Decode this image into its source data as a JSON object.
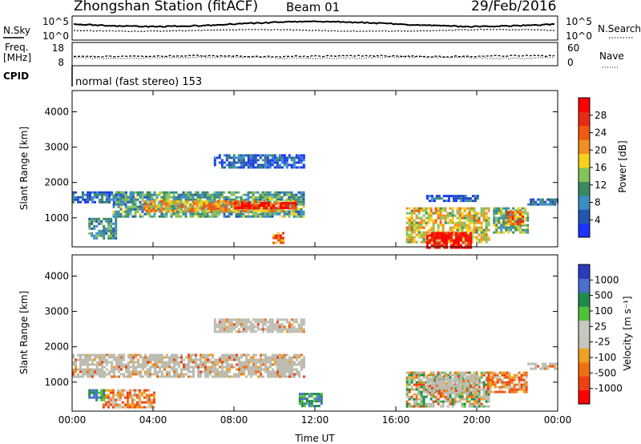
{
  "header": {
    "title": "Zhongshan Station (fitACF)",
    "beam": "Beam 01",
    "date": "29/Feb/2016"
  },
  "summary": {
    "nsky_label": "N.Sky",
    "nsky_ticks": [
      "10^5",
      "10^0"
    ],
    "nsearch_label": "N.Search",
    "nsearch_ticks": [
      "10^5",
      "10^0"
    ],
    "freq_label_line1": "Freq.",
    "freq_label_line2": "[MHz]",
    "freq_ticks": [
      "18",
      "8"
    ],
    "nave_label": "Nave",
    "nave_ticks": [
      "60",
      "0"
    ],
    "cpid_label": "CPID",
    "cpid_text": "normal (fast stereo) 153"
  },
  "colors": {
    "power_scale": [
      "#1a33ff",
      "#2255b0",
      "#3b8ec4",
      "#3a8a64",
      "#86c25b",
      "#f5d31a",
      "#f28f1e",
      "#f05a10",
      "#e82b14",
      "#ff0000"
    ],
    "velocity_scale": [
      "#2a3cbc",
      "#4a6fd0",
      "#1f8a4a",
      "#4fc23b",
      "#c8c8c0",
      "#c6c6bc",
      "#f0a020",
      "#f07010",
      "#ef4010",
      "#ff0000"
    ],
    "ground_scatter": "#bcbcb0"
  },
  "chart_data": [
    {
      "type": "heatmap",
      "title": "",
      "xlabel": "",
      "ylabel": "Slant Range [km]",
      "x_ticks": [
        "00:00",
        "04:00",
        "08:00",
        "12:00",
        "16:00",
        "20:00",
        "00:00"
      ],
      "xlim_hours": [
        0,
        24
      ],
      "ylim_km": [
        180,
        4600
      ],
      "y_ticks": [
        1000,
        2000,
        3000,
        4000
      ],
      "colorbar": {
        "label": "Power [dB]",
        "ticks": [
          "4",
          "8",
          "12",
          "16",
          "20",
          "24",
          "28"
        ],
        "range": [
          0,
          30
        ]
      },
      "regions": [
        {
          "t0": 0.0,
          "t1": 3.0,
          "r0": 1450,
          "r1": 1750,
          "level": 0.2
        },
        {
          "t0": 2.0,
          "t1": 11.5,
          "r0": 1050,
          "r1": 1750,
          "level": 0.35
        },
        {
          "t0": 3.5,
          "t1": 11.0,
          "r0": 1200,
          "r1": 1500,
          "level": 0.62
        },
        {
          "t0": 8.0,
          "t1": 11.0,
          "r0": 1250,
          "r1": 1450,
          "level": 0.85
        },
        {
          "t0": 0.8,
          "t1": 2.2,
          "r0": 400,
          "r1": 1000,
          "level": 0.3
        },
        {
          "t0": 7.0,
          "t1": 11.5,
          "r0": 2450,
          "r1": 2800,
          "level": 0.15
        },
        {
          "t0": 9.9,
          "t1": 10.4,
          "r0": 300,
          "r1": 600,
          "level": 0.7
        },
        {
          "t0": 16.5,
          "t1": 20.6,
          "r0": 300,
          "r1": 1300,
          "level": 0.55
        },
        {
          "t0": 17.5,
          "t1": 19.7,
          "r0": 180,
          "r1": 600,
          "level": 0.95
        },
        {
          "t0": 20.8,
          "t1": 22.5,
          "r0": 600,
          "r1": 1300,
          "level": 0.4
        },
        {
          "t0": 21.5,
          "t1": 22.3,
          "r0": 800,
          "r1": 1200,
          "level": 0.7
        },
        {
          "t0": 22.5,
          "t1": 24.0,
          "r0": 1350,
          "r1": 1550,
          "level": 0.2
        },
        {
          "t0": 17.5,
          "t1": 20.0,
          "r0": 1500,
          "r1": 1650,
          "level": 0.15
        }
      ]
    },
    {
      "type": "heatmap",
      "title": "",
      "xlabel": "Time UT",
      "ylabel": "Slant Range [km]",
      "x_ticks": [
        "00:00",
        "04:00",
        "08:00",
        "12:00",
        "16:00",
        "20:00",
        "00:00"
      ],
      "xlim_hours": [
        0,
        24
      ],
      "ylim_km": [
        180,
        4600
      ],
      "y_ticks": [
        1000,
        2000,
        3000,
        4000
      ],
      "colorbar": {
        "label": "Velocity [m s⁻¹]",
        "ticks": [
          "1000",
          "500",
          "100",
          "25",
          "-25",
          "-100",
          "-500",
          "-1000"
        ],
        "range": [
          -1000,
          1000
        ]
      },
      "regions": [
        {
          "t0": 0.0,
          "t1": 11.5,
          "r0": 1150,
          "r1": 1800,
          "kind": "ground"
        },
        {
          "t0": 7.0,
          "t1": 11.5,
          "r0": 2450,
          "r1": 2800,
          "kind": "ground"
        },
        {
          "t0": 16.5,
          "t1": 20.6,
          "r0": 300,
          "r1": 1300,
          "kind": "mixed"
        },
        {
          "t0": 17.5,
          "t1": 20.0,
          "r0": 700,
          "r1": 1200,
          "kind": "ground"
        },
        {
          "t0": 20.5,
          "t1": 22.5,
          "r0": 700,
          "r1": 1300,
          "kind": "negative"
        },
        {
          "t0": 1.5,
          "t1": 4.0,
          "r0": 300,
          "r1": 800,
          "kind": "negative"
        },
        {
          "t0": 22.5,
          "t1": 24.0,
          "r0": 1350,
          "r1": 1550,
          "kind": "ground"
        },
        {
          "t0": 0.8,
          "t1": 1.6,
          "r0": 500,
          "r1": 800,
          "kind": "positive"
        },
        {
          "t0": 11.2,
          "t1": 12.3,
          "r0": 300,
          "r1": 700,
          "kind": "positive"
        }
      ]
    }
  ]
}
